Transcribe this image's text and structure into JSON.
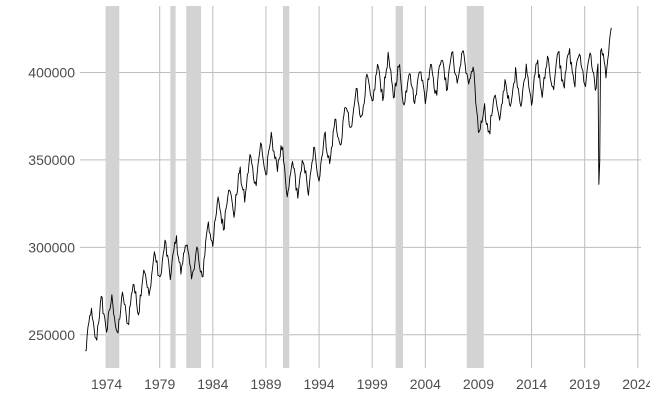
{
  "chart_data": {
    "type": "line",
    "title": "",
    "xlabel": "",
    "ylabel": "",
    "grid": true,
    "legend": "none",
    "xlim": [
      1971.5,
      2024.3
    ],
    "ylim": [
      231000,
      438000
    ],
    "x_ticks": [
      1974,
      1979,
      1984,
      1989,
      1994,
      1999,
      2004,
      2009,
      2014,
      2019,
      2024
    ],
    "x_tick_labels": [
      "1974",
      "1979",
      "1984",
      "1989",
      "1994",
      "1999",
      "2004",
      "2009",
      "2014",
      "2019",
      "2024"
    ],
    "y_ticks": [
      250000,
      300000,
      350000,
      400000
    ],
    "y_tick_labels": [
      "250000",
      "300000",
      "350000",
      "400000"
    ],
    "recession_bands": [
      [
        1973.9,
        1975.2
      ],
      [
        1980.0,
        1980.5
      ],
      [
        1981.5,
        1982.9
      ],
      [
        1990.6,
        1991.2
      ],
      [
        2001.2,
        2001.9
      ],
      [
        2007.9,
        2009.5
      ]
    ],
    "series": [
      {
        "x_start": 1972.0,
        "step": 0.0833333,
        "seasonal_amplitude": 11000,
        "trend_knots": [
          [
            1972.0,
            249000
          ],
          [
            1974.0,
            262000
          ],
          [
            1975.0,
            258000
          ],
          [
            1977.0,
            272000
          ],
          [
            1979.0,
            290000
          ],
          [
            1981.0,
            295000
          ],
          [
            1982.8,
            287000
          ],
          [
            1984.0,
            312000
          ],
          [
            1986.0,
            328000
          ],
          [
            1988.0,
            345000
          ],
          [
            1990.0,
            355000
          ],
          [
            1991.0,
            337000
          ],
          [
            1993.0,
            340000
          ],
          [
            1995.0,
            357000
          ],
          [
            1997.0,
            375000
          ],
          [
            1999.0,
            390000
          ],
          [
            2000.5,
            398000
          ],
          [
            2002.0,
            390000
          ],
          [
            2004.0,
            393000
          ],
          [
            2006.0,
            400000
          ],
          [
            2008.0,
            403000
          ],
          [
            2009.3,
            368000
          ],
          [
            2010.5,
            377000
          ],
          [
            2012.0,
            388000
          ],
          [
            2014.0,
            393000
          ],
          [
            2016.0,
            399000
          ],
          [
            2018.0,
            402000
          ],
          [
            2020.0,
            400000
          ],
          [
            2021.5,
            412000
          ]
        ],
        "shocks": [
          {
            "x": 2020.3,
            "value": 336000
          },
          {
            "x": 2020.4,
            "value": 349000
          }
        ],
        "color": "#000000"
      }
    ]
  },
  "colors": {
    "grid": "#bebebe",
    "band": "#d3d3d3",
    "line": "#000000",
    "tick_text": "#4d4d4d",
    "background": "#ffffff"
  }
}
